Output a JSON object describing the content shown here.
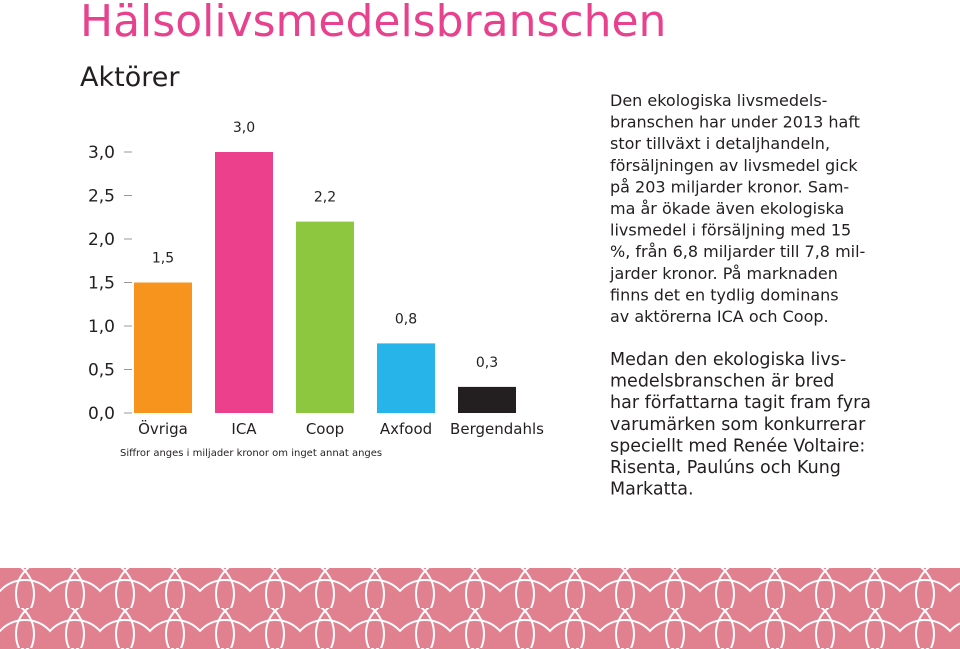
{
  "header": {
    "title": "Hälsolivsmedelsbranschen",
    "subtitle": "Aktörer"
  },
  "chart_data": {
    "type": "bar",
    "categories": [
      "Övriga",
      "ICA",
      "Coop",
      "Axfood",
      "Bergendahls"
    ],
    "values": [
      1.5,
      3.0,
      2.2,
      0.8,
      0.3
    ],
    "value_labels": [
      "1,5",
      "3,0",
      "2,2",
      "0,8",
      "0,3"
    ],
    "colors": [
      "#f7941d",
      "#ec3f8c",
      "#8dc63f",
      "#27b4e9",
      "#231f20"
    ],
    "ylim": [
      0,
      3
    ],
    "yticks": [
      {
        "value": 0,
        "label": "0,0"
      },
      {
        "value": 0.5,
        "label": "0,5"
      },
      {
        "value": 1,
        "label": "1,0"
      },
      {
        "value": 1.5,
        "label": "1,5"
      },
      {
        "value": 2,
        "label": "2,0"
      },
      {
        "value": 2.5,
        "label": "2,5"
      },
      {
        "value": 3,
        "label": "3,0"
      }
    ],
    "note": "Siffror anges i miljader kronor om inget annat anges"
  },
  "text": {
    "paragraphs": [
      [
        "Den ekologiska livsmedels-",
        "branschen har under 2013 haft",
        "stor tillväxt i detaljhandeln,",
        "försäljningen av livsmedel gick",
        "på 203 miljarder kronor. Sam-",
        "ma år ökade även ekologiska",
        "livsmedel i försäljning med 15",
        "%, från 6,8 miljarder till 7,8 mil-",
        "jarder kronor. På marknaden",
        "finns det en tydlig dominans",
        "av aktörerna ICA och Coop."
      ],
      [
        "Medan den ekologiska livs-",
        "medelsbranschen är bred",
        "har författarna tagit fram fyra",
        "varumärken som konkurrerar",
        "speciellt med Renée Voltaire:",
        "Risenta, Paulúns och Kung",
        "Markatta."
      ]
    ]
  }
}
